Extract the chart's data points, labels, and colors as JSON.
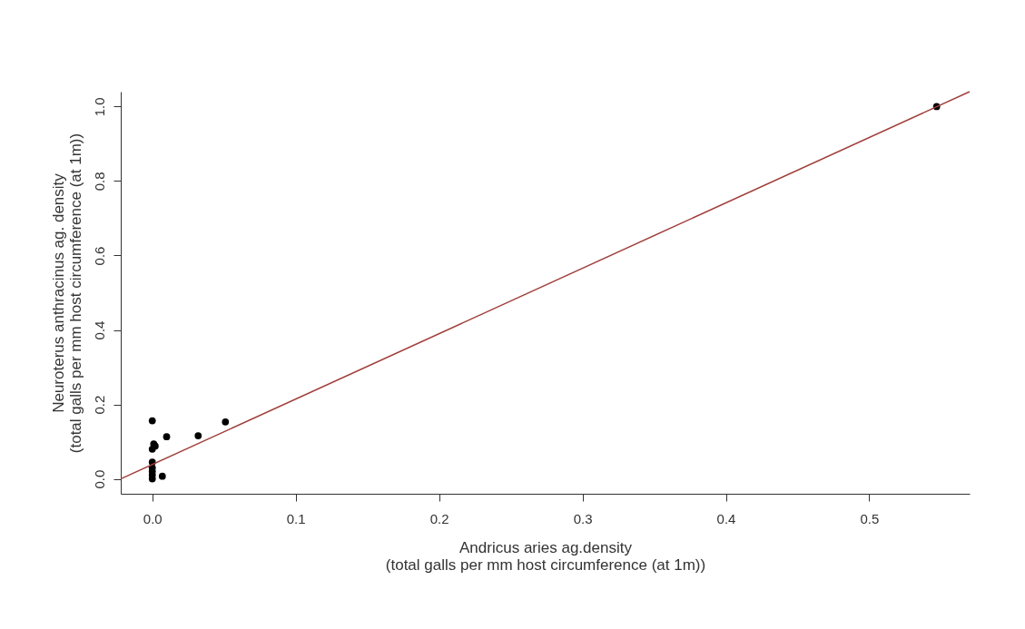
{
  "chart_data": {
    "type": "scatter",
    "xlabel": "Andricus aries ag.density\n(total galls per mm host circumference (at 1m))",
    "ylabel": "Neuroterus anthracinus ag. density\n(total galls per mm host circumference (at 1m))",
    "xlim": [
      -0.022,
      0.57
    ],
    "ylim": [
      -0.04,
      1.04
    ],
    "xticks": [
      {
        "value": 0,
        "label": "0.0"
      },
      0.1,
      0.2,
      0.3,
      0.4,
      0.5
    ],
    "yticks": [
      {
        "value": 0,
        "label": "0.0"
      },
      0.2,
      0.4,
      0.6,
      0.8,
      {
        "value": 1,
        "label": "1.0"
      }
    ],
    "grid": false,
    "series": [
      {
        "color": "#000000",
        "marker": "circle",
        "x": [
          0,
          0.01,
          0.032,
          0.051,
          0.001,
          0,
          0.002,
          0,
          0,
          0,
          0,
          0,
          0.007,
          0.547
        ],
        "values": [
          0.156,
          0.113,
          0.116,
          0.153,
          0.094,
          0.08,
          0.088,
          0.045,
          0.03,
          0.02,
          0.01,
          0.0,
          0.007,
          1.0
        ]
      },
      {
        "type": "line",
        "color": "#a0403c",
        "x": [
          -0.022,
          0.57
        ],
        "values": [
          0.0,
          1.04
        ]
      }
    ]
  }
}
